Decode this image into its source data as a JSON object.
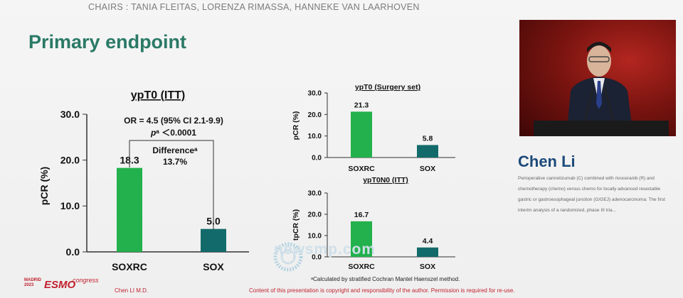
{
  "header": {
    "chairs": "CHAIRS : TANIA FLEITAS, LORENZA RIMASSA, HANNEKE VAN LAARHOVEN"
  },
  "slide_title": "Primary endpoint",
  "speaker": {
    "name": "Chen Li",
    "description": "Perioperative camrelizumab (C) combined with rivoceranib (R) and chemotherapy (chemo) versus chemo for locally advanced resectable gastric or gastroesophageal junction (G/GEJ) adenocarcinoma: The first interim analysis of a randomized, phase III tria..."
  },
  "footer": {
    "esmo_location": "MADRID 2023",
    "esmo_mark": "ESMO",
    "esmo_congress": "congress",
    "presenter": "Chen LI M.D.",
    "copyright": "Content of this presentation is copyright and responsibility of the author. Permission is required for re-use.",
    "footnote": "ᵃCalculated by stratified Cochran Mantel Haenszel method.",
    "watermark": "newsmp.com"
  },
  "colors": {
    "soxrc": "#22b14c",
    "sox": "#126b6a",
    "title": "#2a7a66"
  },
  "chart_data": [
    {
      "type": "bar",
      "title": "ypT0 (ITT)",
      "categories": [
        "SOXRC",
        "SOX"
      ],
      "values": [
        18.3,
        5.0
      ],
      "value_labels": [
        "18.3",
        "5.0"
      ],
      "ylabel": "pCR (%)",
      "yticks": [
        "0.0",
        "10.0",
        "20.0",
        "30.0"
      ],
      "ylim": [
        0,
        30
      ],
      "annotations": {
        "or": "OR = 4.5 (95% CI 2.1-9.9)",
        "p_prefix": "p",
        "p_rest": "ᵃ ＜0.0001",
        "diff_label": "Differenceᵃ",
        "diff_value": "13.7%"
      }
    },
    {
      "type": "bar",
      "title": "ypT0 (Surgery set)",
      "categories": [
        "SOXRC",
        "SOX"
      ],
      "values": [
        21.3,
        5.8
      ],
      "value_labels": [
        "21.3",
        "5.8"
      ],
      "ylabel": "pCR (%)",
      "yticks": [
        "0.0",
        "10.0",
        "20.0",
        "30.0"
      ],
      "ylim": [
        0,
        30
      ]
    },
    {
      "type": "bar",
      "title": "ypT0N0 (ITT)",
      "categories": [
        "SOXRC",
        "SOX"
      ],
      "values": [
        16.7,
        4.4
      ],
      "value_labels": [
        "16.7",
        "4.4"
      ],
      "ylabel": "tpCR (%)",
      "yticks": [
        "0.0",
        "10.0",
        "20.0",
        "30.0"
      ],
      "ylim": [
        0,
        30
      ]
    }
  ]
}
